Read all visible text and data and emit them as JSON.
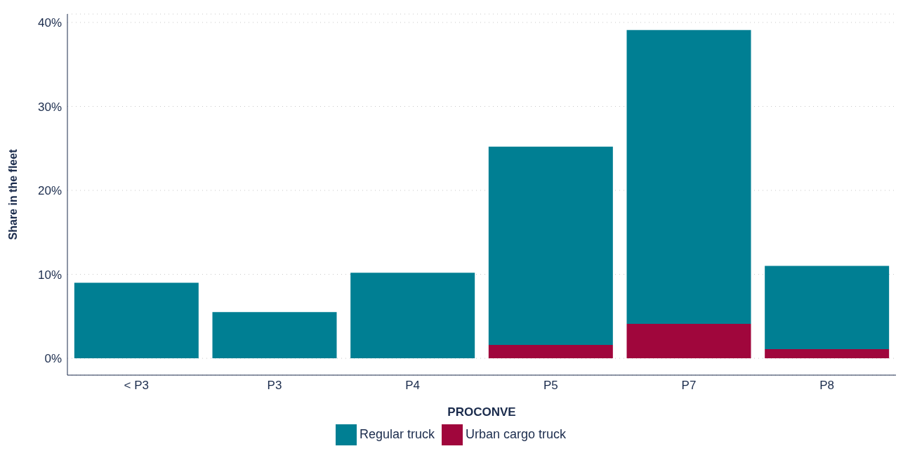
{
  "chart_data": {
    "type": "bar",
    "stacked": true,
    "xlabel": "PROCONVE",
    "ylabel": "Share in the fleet",
    "categories": [
      "< P3",
      "P3",
      "P4",
      "P5",
      "P7",
      "P8"
    ],
    "series": [
      {
        "name": "Urban cargo truck",
        "color": "#a0063c",
        "values": [
          0,
          0,
          0,
          1.6,
          4.1,
          1.1
        ]
      },
      {
        "name": "Regular truck",
        "color": "#007f93",
        "values": [
          9.0,
          5.5,
          10.2,
          23.6,
          35.0,
          9.9
        ]
      }
    ],
    "ylim": [
      -2,
      41
    ],
    "yticks": [
      {
        "value": 0,
        "label": "0%"
      },
      {
        "value": 10,
        "label": "10%"
      },
      {
        "value": 20,
        "label": "20%"
      },
      {
        "value": 30,
        "label": "30%"
      },
      {
        "value": 40,
        "label": "40%"
      }
    ],
    "grid": "y",
    "legend": "bottom"
  }
}
